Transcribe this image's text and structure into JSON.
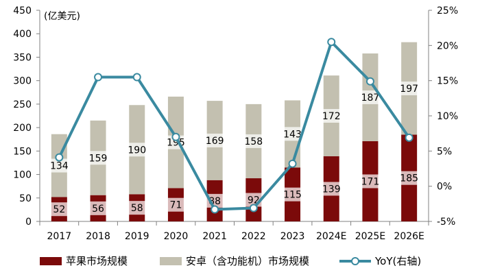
{
  "chart_data": {
    "type": "bar",
    "stacked": true,
    "unit_label": "(亿美元)",
    "categories": [
      "2017",
      "2018",
      "2019",
      "2020",
      "2021",
      "2022",
      "2023",
      "2024E",
      "2025E",
      "2026E"
    ],
    "series": [
      {
        "name": "苹果市场规模",
        "type": "bar",
        "axis": "left",
        "color": "#7b0a0a",
        "values": [
          52,
          56,
          58,
          71,
          88,
          92,
          115,
          139,
          171,
          185
        ]
      },
      {
        "name": "安卓（含功能机）市场规模",
        "type": "bar",
        "axis": "left",
        "color": "#c3c0b0",
        "values": [
          134,
          159,
          190,
          195,
          169,
          158,
          143,
          172,
          187,
          197
        ]
      },
      {
        "name": "YoY(右轴)",
        "type": "line",
        "axis": "right",
        "color": "#3a8aa0",
        "values": [
          4.1,
          15.5,
          15.5,
          7.0,
          -3.3,
          -3.1,
          3.2,
          20.5,
          14.9,
          6.9
        ]
      }
    ],
    "y_left": {
      "min": 0,
      "max": 450,
      "step": 50
    },
    "y_right": {
      "min": -5,
      "max": 25,
      "step": 5,
      "format": "percent"
    },
    "legend": {
      "position": "bottom"
    },
    "grid": false
  }
}
